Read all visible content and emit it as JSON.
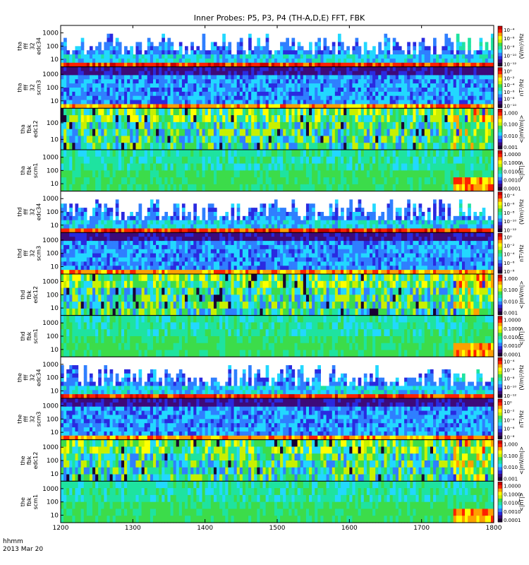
{
  "chart_data": {
    "type": "heatmap",
    "title": "Inner Probes: P5, P3, P4 (TH-A,D,E) FFT, FBK",
    "xlabel_time": "hhmm",
    "xlabel_date": "2013 Mar 20",
    "x_ticks": [
      "1200",
      "1300",
      "1400",
      "1500",
      "1600",
      "1700",
      "1800"
    ],
    "xlim": [
      1200,
      1800
    ],
    "yscale": "log",
    "panels": [
      {
        "probe": "tha",
        "label": [
          "tha",
          "fff",
          "32",
          "edc34"
        ],
        "kind": "fffe",
        "y_ticks": [
          "1000",
          "100",
          "10"
        ],
        "unit": "(V/m)²/Hz",
        "cbar_ticks": [
          "10⁻⁴",
          "10⁻⁶",
          "10⁻⁸",
          "10⁻¹⁰",
          "10⁻¹²"
        ]
      },
      {
        "probe": "tha",
        "label": [
          "tha",
          "fff",
          "32",
          "scm3"
        ],
        "kind": "fffs",
        "y_ticks": [
          "1000",
          "100",
          "10"
        ],
        "unit": "nT²/Hz",
        "cbar_ticks": [
          "10⁰",
          "10⁻²",
          "10⁻⁴",
          "10⁻⁶",
          "10⁻⁸",
          "10⁻¹⁰"
        ]
      },
      {
        "probe": "tha",
        "label": [
          "tha",
          "fbk",
          "edc12"
        ],
        "kind": "fbke",
        "y_ticks": [
          "100",
          "10"
        ],
        "unit": "<|mV/m|>",
        "cbar_ticks": [
          "1.000",
          "0.100",
          "0.010",
          "0.001"
        ]
      },
      {
        "probe": "tha",
        "label": [
          "tha",
          "fbk",
          "scm1"
        ],
        "kind": "fbks",
        "y_ticks": [
          "1000",
          "100",
          "10"
        ],
        "unit": "<|nT|>",
        "cbar_ticks": [
          "1.0000",
          "0.1000",
          "0.0100",
          "0.0010",
          "0.0001"
        ]
      },
      {
        "probe": "thd",
        "label": [
          "thd",
          "fff",
          "32",
          "edc34"
        ],
        "kind": "fffe",
        "y_ticks": [
          "1000",
          "100",
          "10"
        ],
        "unit": "(V/m)²/Hz",
        "cbar_ticks": [
          "10⁻⁴",
          "10⁻⁶",
          "10⁻⁸",
          "10⁻¹⁰",
          "10⁻¹²"
        ]
      },
      {
        "probe": "thd",
        "label": [
          "thd",
          "fff",
          "32",
          "scm3"
        ],
        "kind": "fffs",
        "y_ticks": [
          "1000",
          "100",
          "10"
        ],
        "unit": "nT²/Hz",
        "cbar_ticks": [
          "10⁰",
          "10⁻²",
          "10⁻⁴",
          "10⁻⁶",
          "10⁻⁸"
        ]
      },
      {
        "probe": "thd",
        "label": [
          "thd",
          "fbk",
          "edc12"
        ],
        "kind": "fbke",
        "y_ticks": [
          "1000",
          "100",
          "10"
        ],
        "unit": "<|mV/m|>",
        "cbar_ticks": [
          "1.000",
          "0.100",
          "0.010",
          "0.001"
        ]
      },
      {
        "probe": "thd",
        "label": [
          "thd",
          "fbk",
          "scm1"
        ],
        "kind": "fbks",
        "y_ticks": [
          "1000",
          "100",
          "10"
        ],
        "unit": "<|nT|>",
        "cbar_ticks": [
          "1.0000",
          "0.1000",
          "0.0100",
          "0.0010",
          "0.0001"
        ]
      },
      {
        "probe": "the",
        "label": [
          "the",
          "fff",
          "32",
          "edc34"
        ],
        "kind": "fffe",
        "y_ticks": [
          "1000",
          "100",
          "10"
        ],
        "unit": "(V/m)²/Hz",
        "cbar_ticks": [
          "10⁻⁴",
          "10⁻⁶",
          "10⁻⁸",
          "10⁻¹⁰",
          "10⁻¹²"
        ]
      },
      {
        "probe": "the",
        "label": [
          "the",
          "fff",
          "32",
          "scm3"
        ],
        "kind": "fffs",
        "y_ticks": [
          "1000",
          "100",
          "10"
        ],
        "unit": "nT²/Hz",
        "cbar_ticks": [
          "10⁰",
          "10⁻²",
          "10⁻⁴",
          "10⁻⁶",
          "10⁻⁸"
        ]
      },
      {
        "probe": "the",
        "label": [
          "the",
          "fbk",
          "edc12"
        ],
        "kind": "fbke",
        "y_ticks": [
          "1000",
          "100",
          "10"
        ],
        "unit": "<|mV/m|>",
        "cbar_ticks": [
          "1.000",
          "0.100",
          "0.010",
          "0.001"
        ]
      },
      {
        "probe": "the",
        "label": [
          "the",
          "fbk",
          "scm1"
        ],
        "kind": "fbks",
        "y_ticks": [
          "1000",
          "100",
          "10"
        ],
        "unit": "<|nT|>",
        "cbar_ticks": [
          "1.0000",
          "0.1000",
          "0.0100",
          "0.0010",
          "0.0001"
        ]
      }
    ]
  },
  "colors": {
    "colormap": [
      "#1a0033",
      "#3d0a7a",
      "#2a2ae0",
      "#2f7fff",
      "#22d8ff",
      "#1ee3a0",
      "#3cdc4a",
      "#c8f000",
      "#ffff00",
      "#ffa000",
      "#ff2000",
      "#c80000"
    ],
    "background": "#ffffff",
    "axis": "#000000"
  }
}
